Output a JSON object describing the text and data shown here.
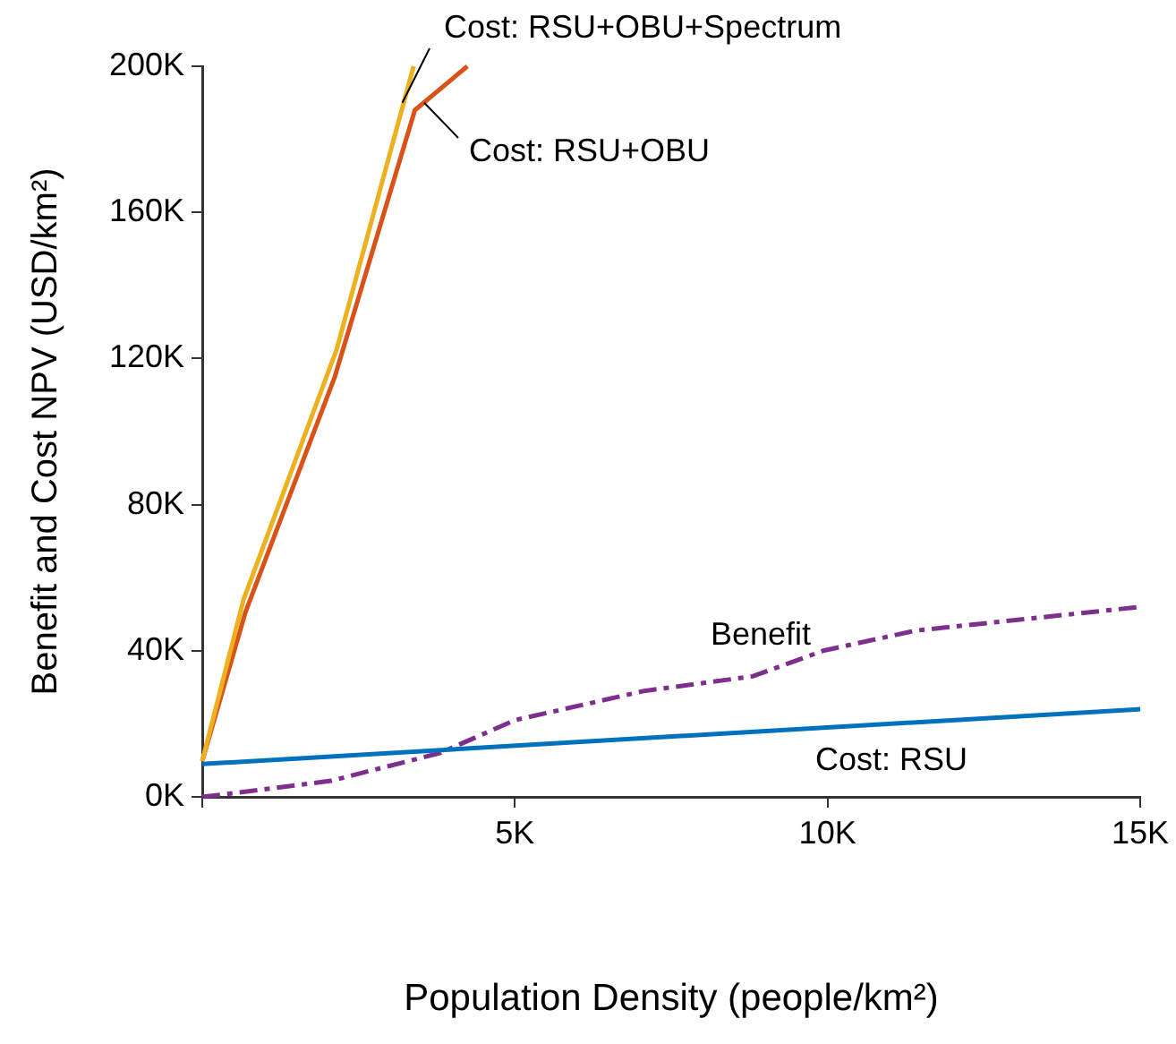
{
  "chart_data": {
    "type": "line",
    "xlabel": "Population Density (people/km²)",
    "ylabel": "Benefit and Cost NPV (USD/km²)",
    "xlim": [
      0,
      15000
    ],
    "xticks": [
      {
        "value": 0,
        "label": null
      },
      {
        "value": 5000,
        "label": "5K"
      },
      {
        "value": 10000,
        "label": "10K"
      },
      {
        "value": 15000,
        "label": "15K"
      }
    ],
    "ylim": [
      0,
      200000
    ],
    "yticks": [
      {
        "value": 0,
        "label": "0K"
      },
      {
        "value": 40000,
        "label": "40K"
      },
      {
        "value": 80000,
        "label": "80K"
      },
      {
        "value": 120000,
        "label": "120K"
      },
      {
        "value": 160000,
        "label": "160K"
      },
      {
        "value": 200000,
        "label": "200K"
      }
    ],
    "grid": false,
    "legend": false,
    "marker": "none",
    "series": [
      {
        "name": "Cost: RSU+OBU+Spectrum",
        "color": "#edb120",
        "line_style": "solid",
        "x": [
          0,
          660,
          2150,
          3380
        ],
        "values": [
          9800,
          54000,
          122500,
          200000
        ]
      },
      {
        "name": "Cost: RSU+OBU",
        "color": "#d95319",
        "line_style": "solid",
        "x": [
          0,
          690,
          2120,
          3400,
          4240
        ],
        "values": [
          9800,
          50500,
          115000,
          188000,
          200000
        ]
      },
      {
        "name": "Cost: RSU",
        "color": "#0072bd",
        "line_style": "solid",
        "x": [
          0,
          15000
        ],
        "values": [
          9000,
          24000
        ]
      },
      {
        "name": "Benefit",
        "color": "#7e2f8e",
        "line_style": "dashed",
        "x": [
          0,
          500,
          2060,
          3800,
          5000,
          7070,
          8800,
          9930,
          11400,
          15000
        ],
        "values": [
          0,
          1000,
          4400,
          12000,
          21000,
          29000,
          33000,
          40000,
          45500,
          52000
        ]
      }
    ]
  }
}
